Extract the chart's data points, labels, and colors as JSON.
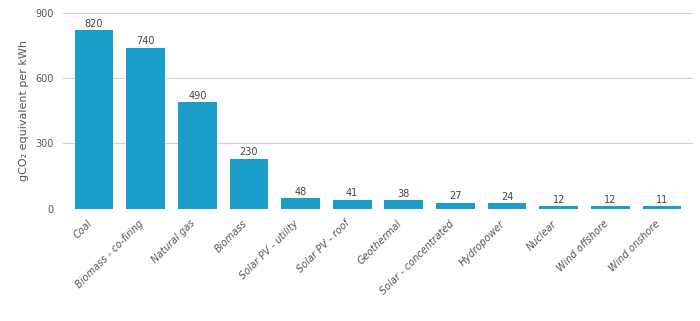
{
  "categories": [
    "Coal",
    "Biomass - co-firing",
    "Natural gas",
    "Biomass",
    "Solar PV - utility",
    "Solar PV - roof",
    "Geothermal",
    "Solar - concentrated",
    "Hydropower",
    "Nuclear",
    "Wind offshore",
    "Wind onshore"
  ],
  "values": [
    820,
    740,
    490,
    230,
    48,
    41,
    38,
    27,
    24,
    12,
    12,
    11
  ],
  "bar_color": "#1a9ec9",
  "ylabel": "gCO₂ equivalent per kWh",
  "ylim": [
    0,
    900
  ],
  "yticks": [
    0,
    300,
    600,
    900
  ],
  "background_color": "#ffffff",
  "grid_color": "#d0d0d0",
  "label_fontsize": 7.0,
  "value_fontsize": 7.0,
  "ylabel_fontsize": 8.0,
  "bar_width": 0.75
}
